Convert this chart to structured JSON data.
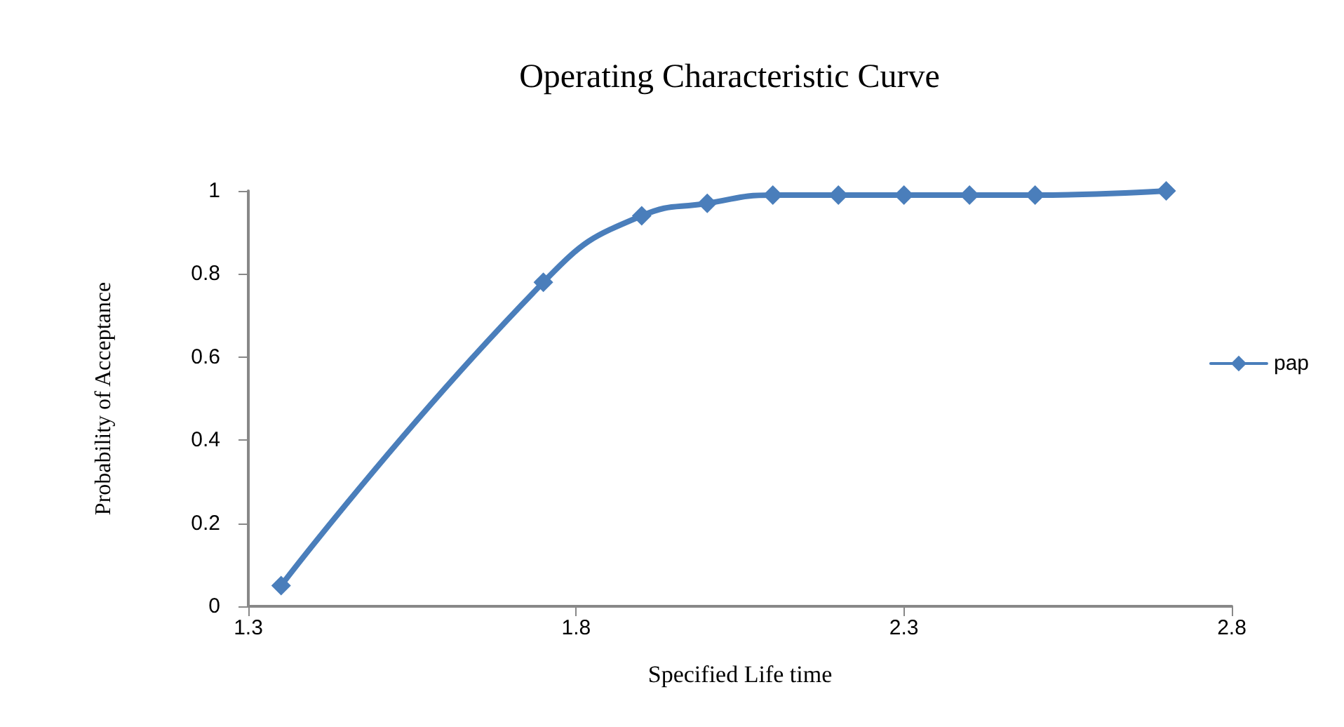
{
  "chart_data": {
    "type": "line",
    "title": "Operating Characteristic Curve",
    "xlabel": "Specified Life time",
    "ylabel": "Probability of Acceptance",
    "x": [
      1.35,
      1.75,
      1.9,
      2.0,
      2.1,
      2.2,
      2.3,
      2.4,
      2.5,
      2.7
    ],
    "series": [
      {
        "name": "pap",
        "color": "#4a7ebb",
        "values": [
          0.05,
          0.78,
          0.94,
          0.97,
          0.99,
          0.99,
          0.99,
          0.99,
          0.99,
          1.0
        ]
      }
    ],
    "xlim": [
      1.3,
      2.8
    ],
    "xticks": [
      1.3,
      1.8,
      2.3,
      2.8
    ],
    "ylim": [
      0,
      1
    ],
    "yticks": [
      0,
      0.2,
      0.4,
      0.6,
      0.8,
      1
    ],
    "grid": false,
    "legend": "right",
    "marker": "diamond",
    "line_style": "solid"
  }
}
